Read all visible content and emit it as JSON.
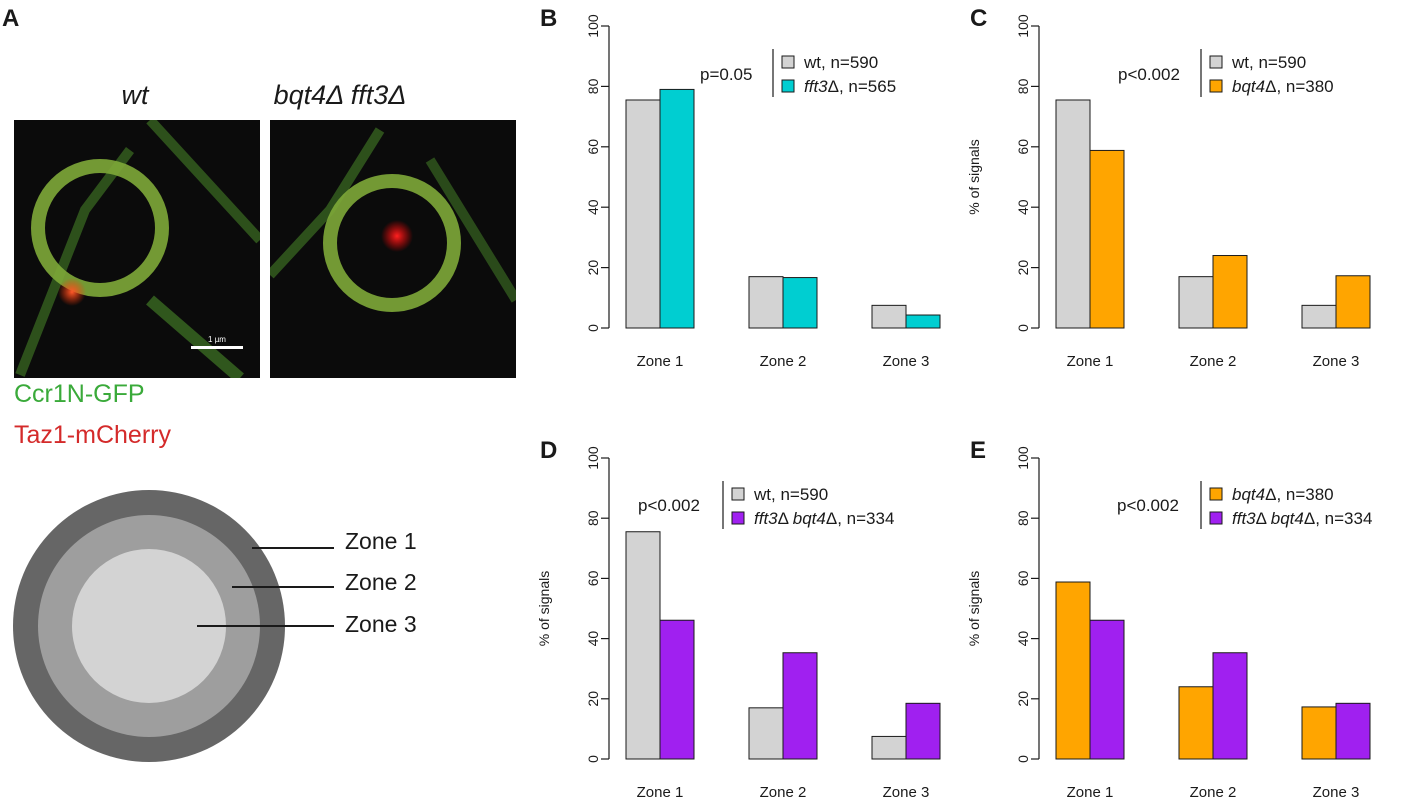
{
  "panel_a": {
    "label": "A",
    "image_titles": [
      [
        {
          "t": "wt",
          "i": true
        }
      ],
      [
        {
          "t": "bqt4",
          "i": true
        },
        {
          "t": "Δ ",
          "i": false
        },
        {
          "t": "fft3",
          "i": true
        },
        {
          "t": "Δ",
          "i": false
        }
      ]
    ],
    "scale_bar_label": "1 µm",
    "stain_labels": [
      {
        "text": "Ccr1N-GFP",
        "color": "#3aaa3a"
      },
      {
        "text": "Taz1-mCherry",
        "color": "#d42a2a"
      }
    ],
    "zones": [
      "Zone 1",
      "Zone 2",
      "Zone 3"
    ],
    "zone_colors": [
      "#666666",
      "#9e9e9e",
      "#d3d3d3"
    ]
  },
  "colors": {
    "wt": "#d3d3d3",
    "fft3": "#00ced1",
    "bqt4": "#ffa500",
    "double": "#a020f0"
  },
  "chart_data": [
    {
      "panel": "B",
      "type": "bar",
      "categories": [
        "Zone 1",
        "Zone 2",
        "Zone 3"
      ],
      "ylim": [
        0,
        100
      ],
      "yticks": [
        0,
        20,
        40,
        60,
        80,
        100
      ],
      "ylabel": "",
      "pvalue": "p=0.05",
      "series": [
        {
          "legend": [
            {
              "t": "wt, n=590",
              "i": false
            }
          ],
          "color": "#d3d3d3",
          "values": [
            75.5,
            17.0,
            7.5
          ]
        },
        {
          "legend": [
            {
              "t": "fft3",
              "i": true
            },
            {
              "t": "Δ, n=565",
              "i": false
            }
          ],
          "color": "#00ced1",
          "values": [
            79.0,
            16.7,
            4.3
          ]
        }
      ]
    },
    {
      "panel": "C",
      "type": "bar",
      "categories": [
        "Zone 1",
        "Zone 2",
        "Zone 3"
      ],
      "ylim": [
        0,
        100
      ],
      "yticks": [
        0,
        20,
        40,
        60,
        80,
        100
      ],
      "ylabel": "% of signals",
      "pvalue": "p<0.002",
      "series": [
        {
          "legend": [
            {
              "t": "wt, n=590",
              "i": false
            }
          ],
          "color": "#d3d3d3",
          "values": [
            75.5,
            17.0,
            7.5
          ]
        },
        {
          "legend": [
            {
              "t": "bqt4",
              "i": true
            },
            {
              "t": "Δ, n=380",
              "i": false
            }
          ],
          "color": "#ffa500",
          "values": [
            58.8,
            24.0,
            17.3
          ]
        }
      ]
    },
    {
      "panel": "D",
      "type": "bar",
      "categories": [
        "Zone 1",
        "Zone 2",
        "Zone 3"
      ],
      "ylim": [
        0,
        100
      ],
      "yticks": [
        0,
        20,
        40,
        60,
        80,
        100
      ],
      "ylabel": "% of signals",
      "pvalue": "p<0.002",
      "series": [
        {
          "legend": [
            {
              "t": "wt, n=590",
              "i": false
            }
          ],
          "color": "#d3d3d3",
          "values": [
            75.5,
            17.0,
            7.5
          ]
        },
        {
          "legend": [
            {
              "t": "fft3",
              "i": true
            },
            {
              "t": "Δ ",
              "i": false
            },
            {
              "t": "bqt4",
              "i": true
            },
            {
              "t": "Δ, n=334",
              "i": false
            }
          ],
          "color": "#a020f0",
          "values": [
            46.1,
            35.3,
            18.5
          ]
        }
      ]
    },
    {
      "panel": "E",
      "type": "bar",
      "categories": [
        "Zone 1",
        "Zone 2",
        "Zone 3"
      ],
      "ylim": [
        0,
        100
      ],
      "yticks": [
        0,
        20,
        40,
        60,
        80,
        100
      ],
      "ylabel": "% of signals",
      "pvalue": "p<0.002",
      "series": [
        {
          "legend": [
            {
              "t": "bqt4",
              "i": true
            },
            {
              "t": "Δ, n=380",
              "i": false
            }
          ],
          "color": "#ffa500",
          "values": [
            58.8,
            24.0,
            17.3
          ]
        },
        {
          "legend": [
            {
              "t": "fft3",
              "i": true
            },
            {
              "t": "Δ ",
              "i": false
            },
            {
              "t": "bqt4",
              "i": true
            },
            {
              "t": "Δ, n=334",
              "i": false
            }
          ],
          "color": "#a020f0",
          "values": [
            46.1,
            35.3,
            18.5
          ]
        }
      ]
    }
  ]
}
